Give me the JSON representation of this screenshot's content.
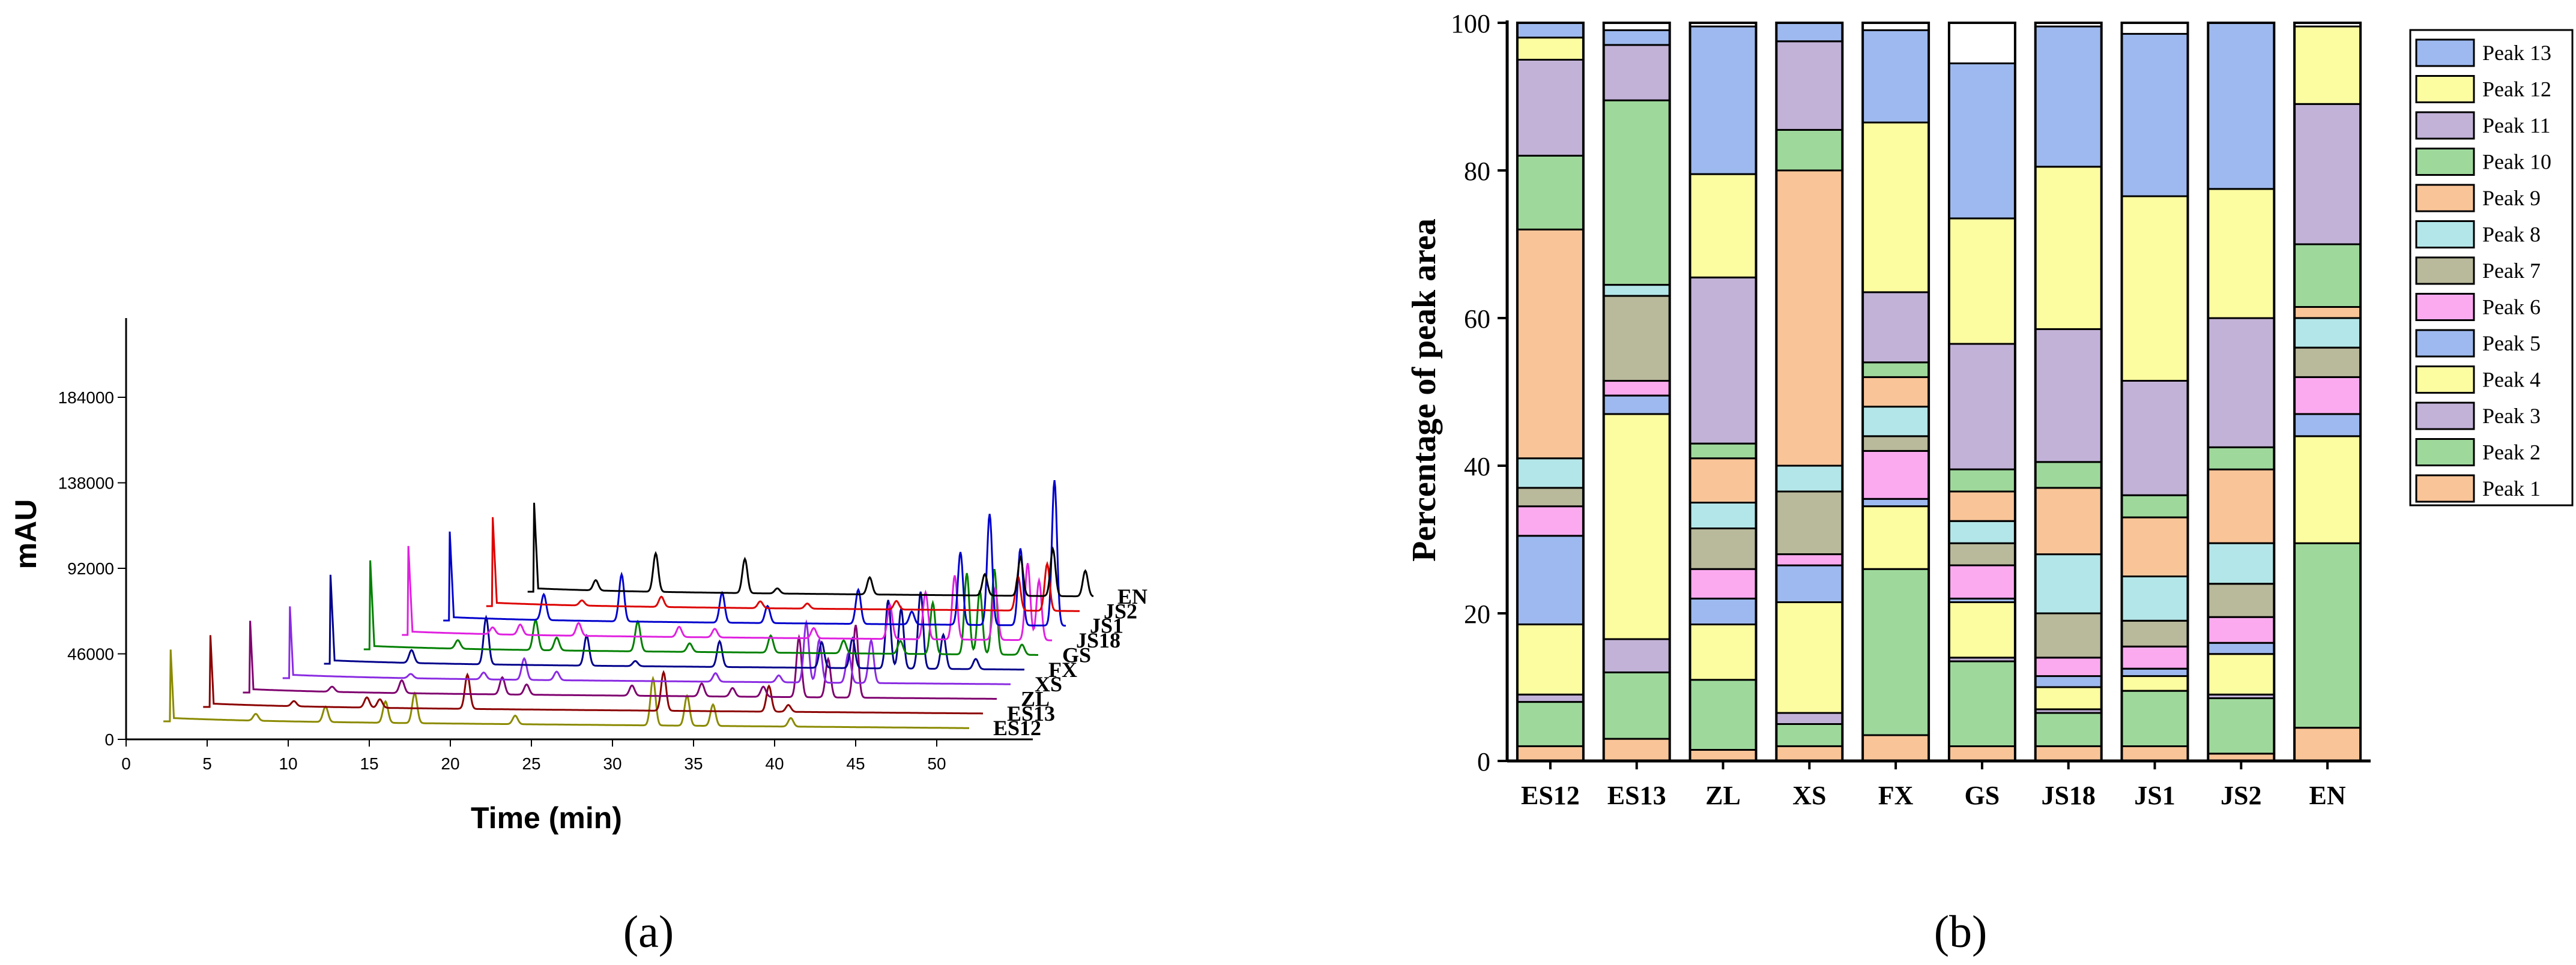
{
  "panel_a": {
    "caption": "(a)",
    "chart_data": {
      "type": "line",
      "title": "",
      "xlabel": "Time (min)",
      "ylabel": "mAU",
      "xlim": [
        0,
        55
      ],
      "ylim": [
        0,
        240000
      ],
      "x_ticks": [
        "0",
        "5",
        "10",
        "15",
        "20",
        "25",
        "30",
        "35",
        "40",
        "45",
        "50"
      ],
      "y_ticks": [
        "0",
        "46000",
        "92000",
        "138000",
        "184000"
      ],
      "series": [
        {
          "name": "ES12",
          "color": "#8a8a00",
          "onset": 2.7,
          "peaks": [
            [
              8,
              0.08
            ],
            [
              12.3,
              0.18
            ],
            [
              16,
              0.25
            ],
            [
              17.8,
              0.35
            ],
            [
              24,
              0.1
            ],
            [
              32.5,
              0.55
            ],
            [
              34.6,
              0.35
            ],
            [
              36.2,
              0.25
            ],
            [
              41,
              0.1
            ]
          ]
        },
        {
          "name": "ES13",
          "color": "#8b0000",
          "onset": 4.3,
          "peaks": [
            [
              9.5,
              0.06
            ],
            [
              14,
              0.12
            ],
            [
              14.8,
              0.1
            ],
            [
              20.2,
              0.4
            ],
            [
              32.3,
              0.45
            ],
            [
              38.8,
              0.3
            ],
            [
              40,
              0.08
            ]
          ]
        },
        {
          "name": "ZL",
          "color": "#7f006f",
          "onset": 5.9,
          "peaks": [
            [
              11,
              0.06
            ],
            [
              15.3,
              0.15
            ],
            [
              21.5,
              0.2
            ],
            [
              23,
              0.12
            ],
            [
              29.5,
              0.12
            ],
            [
              33.8,
              0.15
            ],
            [
              35.7,
              0.1
            ],
            [
              37.6,
              0.12
            ],
            [
              39.8,
              0.7
            ],
            [
              41.6,
              0.45
            ],
            [
              43.3,
              0.85
            ]
          ]
        },
        {
          "name": "XS",
          "color": "#8a2be2",
          "onset": 7.5,
          "peaks": [
            [
              15,
              0.05
            ],
            [
              19.5,
              0.08
            ],
            [
              22,
              0.25
            ],
            [
              24,
              0.1
            ],
            [
              33.8,
              0.1
            ],
            [
              37.7,
              0.08
            ],
            [
              39.4,
              0.7
            ],
            [
              40.2,
              0.5
            ],
            [
              42,
              0.35
            ],
            [
              43.4,
              0.5
            ]
          ]
        },
        {
          "name": "FX",
          "color": "#00008b",
          "onset": 9.2,
          "peaks": [
            [
              14.2,
              0.15
            ],
            [
              18.8,
              0.55
            ],
            [
              25,
              0.35
            ],
            [
              28,
              0.06
            ],
            [
              33.2,
              0.3
            ],
            [
              39.5,
              0.3
            ],
            [
              41.4,
              0.35
            ],
            [
              43.6,
              0.8
            ],
            [
              44.4,
              0.7
            ],
            [
              45.6,
              0.9
            ],
            [
              47,
              0.4
            ],
            [
              49,
              0.12
            ]
          ]
        },
        {
          "name": "GS",
          "color": "#008000",
          "onset": 10.8,
          "peaks": [
            [
              16.2,
              0.1
            ],
            [
              21,
              0.35
            ],
            [
              22.3,
              0.15
            ],
            [
              27.3,
              0.35
            ],
            [
              30.5,
              0.1
            ],
            [
              35.5,
              0.2
            ],
            [
              40,
              0.15
            ],
            [
              43.5,
              0.15
            ],
            [
              45.5,
              0.6
            ],
            [
              47.6,
              0.95
            ],
            [
              48.4,
              0.75
            ],
            [
              49.3,
              1.0
            ],
            [
              51,
              0.12
            ]
          ]
        },
        {
          "name": "JS18",
          "color": "#e020e0",
          "onset": 12.3,
          "peaks": [
            [
              17.5,
              0.08
            ],
            [
              19.2,
              0.12
            ],
            [
              22.8,
              0.15
            ],
            [
              29,
              0.12
            ],
            [
              31.2,
              0.1
            ],
            [
              37.3,
              0.12
            ],
            [
              42,
              0.4
            ],
            [
              44.2,
              0.55
            ],
            [
              46,
              0.75
            ],
            [
              48.5,
              0.6
            ],
            [
              50.5,
              0.9
            ],
            [
              51.2,
              0.7
            ]
          ]
        },
        {
          "name": "JS1",
          "color": "#0000cd",
          "onset": 14.0,
          "peaks": [
            [
              19.8,
              0.3
            ],
            [
              24.6,
              0.55
            ],
            [
              30.8,
              0.35
            ],
            [
              33.6,
              0.2
            ],
            [
              39.2,
              0.4
            ],
            [
              42.5,
              0.15
            ],
            [
              45.5,
              0.85
            ],
            [
              47.3,
              1.3
            ],
            [
              49.2,
              0.9
            ],
            [
              51.3,
              1.7
            ],
            [
              52.8,
              2.0
            ],
            [
              54,
              0.15
            ]
          ]
        },
        {
          "name": "JS2",
          "color": "#dd0000",
          "onset": 15.8,
          "peaks": [
            [
              21.3,
              0.06
            ],
            [
              26.2,
              0.12
            ],
            [
              32.3,
              0.08
            ],
            [
              35.2,
              0.06
            ],
            [
              40.7,
              0.1
            ],
            [
              48.2,
              0.4
            ],
            [
              50,
              0.55
            ],
            [
              54.5,
              0.55
            ]
          ]
        },
        {
          "name": "EN",
          "color": "#000000",
          "onset": 17.5,
          "peaks": [
            [
              21.3,
              0.12
            ],
            [
              25,
              0.45
            ],
            [
              30.5,
              0.4
            ],
            [
              32.5,
              0.06
            ],
            [
              38.2,
              0.2
            ],
            [
              45.3,
              0.25
            ],
            [
              47.5,
              0.45
            ],
            [
              49.5,
              0.55
            ],
            [
              51.5,
              0.3
            ]
          ]
        }
      ]
    }
  },
  "panel_b": {
    "caption": "(b)",
    "chart_data": {
      "type": "bar",
      "stacked": true,
      "title": "",
      "xlabel": "",
      "ylabel": "Percentage of peak area",
      "ylim": [
        0,
        100
      ],
      "y_ticks": [
        "0",
        "20",
        "40",
        "60",
        "80",
        "100"
      ],
      "categories": [
        "ES12",
        "ES13",
        "ZL",
        "XS",
        "FX",
        "GS",
        "JS18",
        "JS1",
        "JS2",
        "EN"
      ],
      "legend_position": "top-right",
      "series": [
        {
          "name": "Peak 1",
          "color": "#f9c497",
          "values": [
            2,
            3,
            1.5,
            2,
            3.5,
            2,
            2,
            2,
            1,
            4.5
          ]
        },
        {
          "name": "Peak 2",
          "color": "#9ed99b",
          "values": [
            6,
            9,
            9.5,
            3,
            22.5,
            11.5,
            4.5,
            7.5,
            7.5,
            25
          ]
        },
        {
          "name": "Peak 3",
          "color": "#c2b2d8",
          "values": [
            1,
            4.5,
            0,
            1.5,
            0,
            0.5,
            0.5,
            0,
            0.5,
            0
          ]
        },
        {
          "name": "Peak 4",
          "color": "#fcfca0",
          "values": [
            9.5,
            30.5,
            7.5,
            15,
            8.5,
            7.5,
            3,
            2,
            5.5,
            14.5
          ]
        },
        {
          "name": "Peak 5",
          "color": "#9db9ef",
          "values": [
            12,
            2.5,
            3.5,
            5,
            1,
            0.5,
            1.5,
            1,
            1.5,
            3
          ]
        },
        {
          "name": "Peak 6",
          "color": "#fbaaf0",
          "values": [
            4,
            2,
            4,
            1.5,
            6.5,
            4.5,
            2.5,
            3,
            3.5,
            5
          ]
        },
        {
          "name": "Peak 7",
          "color": "#b9b99b",
          "values": [
            2.5,
            11.5,
            5.5,
            8.5,
            2,
            3,
            6,
            3.5,
            4.5,
            4
          ]
        },
        {
          "name": "Peak 8",
          "color": "#b3e6e8",
          "values": [
            4,
            1.5,
            3.5,
            3.5,
            4,
            3,
            8,
            6,
            5.5,
            4
          ]
        },
        {
          "name": "Peak 9",
          "color": "#f9c497",
          "values": [
            31,
            0,
            6,
            40,
            4,
            4,
            9,
            8,
            10,
            1.5
          ]
        },
        {
          "name": "Peak 10",
          "color": "#9ed99b",
          "values": [
            10,
            25,
            2,
            5.5,
            2,
            3,
            3.5,
            3,
            3,
            8.5
          ]
        },
        {
          "name": "Peak 11",
          "color": "#c2b2d8",
          "values": [
            13,
            7.5,
            22.5,
            12,
            9.5,
            17,
            18,
            15.5,
            17.5,
            19
          ]
        },
        {
          "name": "Peak 12",
          "color": "#fcfca0",
          "values": [
            3,
            0,
            14,
            0,
            23,
            17,
            22,
            25,
            17.5,
            10.5
          ]
        },
        {
          "name": "Peak 13",
          "color": "#9db9ef",
          "values": [
            2,
            2,
            20,
            2.5,
            12.5,
            21,
            19,
            22,
            22.5,
            0
          ]
        }
      ]
    }
  }
}
